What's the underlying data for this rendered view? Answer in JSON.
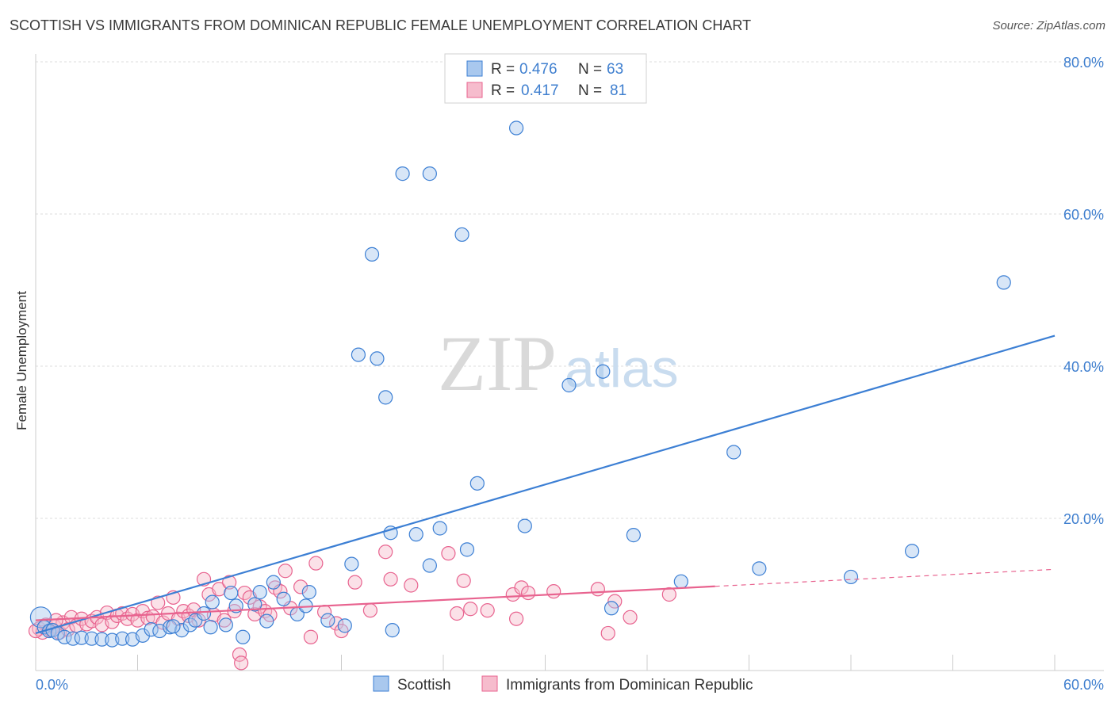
{
  "title": "SCOTTISH VS IMMIGRANTS FROM DOMINICAN REPUBLIC FEMALE UNEMPLOYMENT CORRELATION CHART",
  "source": "Source: ZipAtlas.com",
  "watermark": {
    "zip": "ZIP",
    "atlas": "atlas"
  },
  "colors": {
    "blue": "#3c7fd4",
    "blue_fill": "#a9c8ee",
    "pink": "#e8638f",
    "pink_fill": "#f6bccd",
    "grid": "#d9d9d9",
    "axis_label": "#3f7fcf"
  },
  "legend": {
    "series1": {
      "r_label": "R =",
      "r_value": "0.476",
      "n_label": "N =",
      "n_value": "63"
    },
    "series2": {
      "r_label": "R =",
      "r_value": "0.417",
      "n_label": "N =",
      "n_value": "81"
    }
  },
  "chart_data": {
    "type": "scatter",
    "title": "SCOTTISH VS IMMIGRANTS FROM DOMINICAN REPUBLIC FEMALE UNEMPLOYMENT CORRELATION CHART",
    "xlabel": "",
    "ylabel": "Female Unemployment",
    "xlim": [
      0,
      60
    ],
    "ylim": [
      0,
      80
    ],
    "x_tick_labels": [
      "0.0%",
      "60.0%"
    ],
    "y_ticks": [
      20,
      40,
      60,
      80
    ],
    "y_tick_labels": [
      "20.0%",
      "40.0%",
      "60.0%",
      "80.0%"
    ],
    "grid": true,
    "legend_position": "top-center",
    "series": [
      {
        "name": "Scottish",
        "color": "#3c7fd4",
        "r": 0.476,
        "n": 63,
        "trend": {
          "x": [
            0,
            60
          ],
          "y": [
            4.9,
            44.0
          ],
          "dashed_after": 60
        },
        "points": [
          [
            0.3,
            7.0
          ],
          [
            0.5,
            5.7
          ],
          [
            0.8,
            5.2
          ],
          [
            1.0,
            5.3
          ],
          [
            1.3,
            4.9
          ],
          [
            1.7,
            4.4
          ],
          [
            2.2,
            4.2
          ],
          [
            2.7,
            4.3
          ],
          [
            3.3,
            4.2
          ],
          [
            3.9,
            4.1
          ],
          [
            4.5,
            4.0
          ],
          [
            5.1,
            4.2
          ],
          [
            5.7,
            4.1
          ],
          [
            6.3,
            4.6
          ],
          [
            6.8,
            5.4
          ],
          [
            7.3,
            5.2
          ],
          [
            7.9,
            5.7
          ],
          [
            8.6,
            5.3
          ],
          [
            8.1,
            5.8
          ],
          [
            9.1,
            6.0
          ],
          [
            9.4,
            6.6
          ],
          [
            9.9,
            7.5
          ],
          [
            10.3,
            5.7
          ],
          [
            10.4,
            9.0
          ],
          [
            11.2,
            6.0
          ],
          [
            11.5,
            10.2
          ],
          [
            11.8,
            8.5
          ],
          [
            12.2,
            4.4
          ],
          [
            12.9,
            8.7
          ],
          [
            13.2,
            10.3
          ],
          [
            14.0,
            11.6
          ],
          [
            13.6,
            6.5
          ],
          [
            14.6,
            9.4
          ],
          [
            15.4,
            7.4
          ],
          [
            15.9,
            8.5
          ],
          [
            16.1,
            10.3
          ],
          [
            17.2,
            6.6
          ],
          [
            18.2,
            5.9
          ],
          [
            18.6,
            14.0
          ],
          [
            19.0,
            41.5
          ],
          [
            19.8,
            54.7
          ],
          [
            20.1,
            41.0
          ],
          [
            20.6,
            35.9
          ],
          [
            20.9,
            18.1
          ],
          [
            21.0,
            5.3
          ],
          [
            21.6,
            65.3
          ],
          [
            22.4,
            17.9
          ],
          [
            23.2,
            13.8
          ],
          [
            23.2,
            65.3
          ],
          [
            23.8,
            18.7
          ],
          [
            25.1,
            57.3
          ],
          [
            25.4,
            15.9
          ],
          [
            26.0,
            24.6
          ],
          [
            28.3,
            71.3
          ],
          [
            28.8,
            19.0
          ],
          [
            31.4,
            37.5
          ],
          [
            33.4,
            39.3
          ],
          [
            33.9,
            8.2
          ],
          [
            35.2,
            17.8
          ],
          [
            38.0,
            11.7
          ],
          [
            41.1,
            28.7
          ],
          [
            42.6,
            13.4
          ],
          [
            48.0,
            12.3
          ],
          [
            51.6,
            15.7
          ],
          [
            57.0,
            51.0
          ]
        ]
      },
      {
        "name": "Immigrants from Dominican Republic",
        "color": "#e8638f",
        "r": 0.417,
        "n": 81,
        "trend": {
          "x": [
            0,
            60
          ],
          "y": [
            6.6,
            13.3
          ],
          "solid_until": 40
        },
        "points": [
          [
            0.2,
            5.5
          ],
          [
            0.4,
            5.0
          ],
          [
            0.6,
            6.0
          ],
          [
            0.9,
            5.3
          ],
          [
            1.1,
            5.8
          ],
          [
            1.4,
            5.0
          ],
          [
            1.6,
            6.3
          ],
          [
            1.9,
            5.4
          ],
          [
            2.1,
            7.0
          ],
          [
            2.4,
            5.9
          ],
          [
            2.7,
            6.8
          ],
          [
            3.0,
            6.1
          ],
          [
            3.3,
            6.5
          ],
          [
            3.6,
            7.0
          ],
          [
            3.9,
            6.0
          ],
          [
            4.2,
            7.6
          ],
          [
            4.5,
            6.4
          ],
          [
            4.8,
            7.2
          ],
          [
            5.1,
            7.5
          ],
          [
            5.4,
            6.8
          ],
          [
            5.7,
            7.4
          ],
          [
            6.0,
            6.6
          ],
          [
            6.3,
            7.8
          ],
          [
            6.6,
            6.9
          ],
          [
            6.9,
            7.1
          ],
          [
            7.2,
            8.9
          ],
          [
            7.5,
            6.3
          ],
          [
            7.8,
            7.5
          ],
          [
            8.1,
            9.6
          ],
          [
            8.4,
            6.8
          ],
          [
            8.7,
            7.8
          ],
          [
            9.0,
            7.2
          ],
          [
            9.3,
            8.0
          ],
          [
            9.6,
            6.6
          ],
          [
            9.9,
            12.0
          ],
          [
            10.2,
            10.0
          ],
          [
            10.5,
            7.3
          ],
          [
            10.8,
            10.7
          ],
          [
            11.1,
            6.6
          ],
          [
            11.4,
            11.6
          ],
          [
            11.7,
            7.8
          ],
          [
            12.0,
            2.1
          ],
          [
            12.1,
            1.0
          ],
          [
            12.3,
            10.2
          ],
          [
            12.6,
            9.6
          ],
          [
            12.9,
            7.4
          ],
          [
            13.2,
            8.4
          ],
          [
            13.5,
            7.8
          ],
          [
            13.8,
            7.3
          ],
          [
            14.1,
            10.9
          ],
          [
            14.4,
            10.4
          ],
          [
            14.7,
            13.1
          ],
          [
            15.0,
            8.2
          ],
          [
            15.6,
            11.0
          ],
          [
            16.2,
            4.4
          ],
          [
            16.5,
            14.1
          ],
          [
            17.0,
            7.7
          ],
          [
            17.7,
            6.2
          ],
          [
            18.0,
            5.2
          ],
          [
            18.8,
            11.6
          ],
          [
            19.7,
            7.9
          ],
          [
            20.6,
            15.6
          ],
          [
            20.9,
            12.0
          ],
          [
            22.1,
            11.2
          ],
          [
            24.3,
            15.4
          ],
          [
            24.8,
            7.5
          ],
          [
            25.2,
            11.8
          ],
          [
            25.6,
            8.1
          ],
          [
            26.6,
            7.9
          ],
          [
            28.1,
            10.0
          ],
          [
            28.3,
            6.8
          ],
          [
            28.6,
            10.9
          ],
          [
            29.0,
            10.2
          ],
          [
            30.5,
            10.4
          ],
          [
            33.1,
            10.7
          ],
          [
            33.7,
            4.9
          ],
          [
            34.1,
            9.1
          ],
          [
            35.0,
            7.0
          ],
          [
            37.3,
            10.0
          ],
          [
            0.0,
            5.2
          ],
          [
            1.2,
            6.6
          ]
        ]
      }
    ]
  },
  "bottom_legend": {
    "item1": "Scottish",
    "item2": "Immigrants from Dominican Republic"
  }
}
